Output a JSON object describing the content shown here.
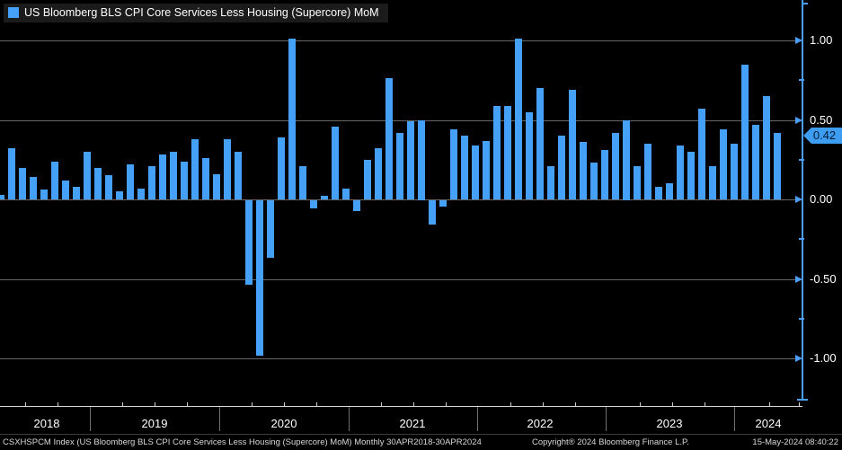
{
  "legend": {
    "label": "US Bloomberg BLS CPI Core Services Less Housing (Supercore) MoM",
    "swatch_color": "#45a1f7"
  },
  "chart_data": {
    "type": "bar",
    "title": "US Bloomberg BLS CPI Core Services Less Housing (Supercore) MoM",
    "x": [
      "Apr 2018",
      "May 2018",
      "Jun 2018",
      "Jul 2018",
      "Aug 2018",
      "Sep 2018",
      "Oct 2018",
      "Nov 2018",
      "Dec 2018",
      "Jan 2019",
      "Feb 2019",
      "Mar 2019",
      "Apr 2019",
      "May 2019",
      "Jun 2019",
      "Jul 2019",
      "Aug 2019",
      "Sep 2019",
      "Oct 2019",
      "Nov 2019",
      "Dec 2019",
      "Jan 2020",
      "Feb 2020",
      "Mar 2020",
      "Apr 2020",
      "May 2020",
      "Jun 2020",
      "Jul 2020",
      "Aug 2020",
      "Sep 2020",
      "Oct 2020",
      "Nov 2020",
      "Dec 2020",
      "Jan 2021",
      "Feb 2021",
      "Mar 2021",
      "Apr 2021",
      "May 2021",
      "Jun 2021",
      "Jul 2021",
      "Aug 2021",
      "Sep 2021",
      "Oct 2021",
      "Nov 2021",
      "Dec 2021",
      "Jan 2022",
      "Feb 2022",
      "Mar 2022",
      "Apr 2022",
      "May 2022",
      "Jun 2022",
      "Jul 2022",
      "Aug 2022",
      "Sep 2022",
      "Oct 2022",
      "Nov 2022",
      "Dec 2022",
      "Jan 2023",
      "Feb 2023",
      "Mar 2023",
      "Apr 2023",
      "May 2023",
      "Jun 2023",
      "Jul 2023",
      "Aug 2023",
      "Sep 2023",
      "Oct 2023",
      "Nov 2023",
      "Dec 2023",
      "Jan 2024",
      "Feb 2024",
      "Mar 2024",
      "Apr 2024"
    ],
    "values": [
      0.03,
      0.32,
      0.2,
      0.14,
      0.06,
      0.24,
      0.12,
      0.08,
      0.3,
      0.2,
      0.15,
      0.05,
      0.22,
      0.07,
      0.21,
      0.28,
      0.3,
      0.24,
      0.38,
      0.26,
      0.16,
      0.38,
      0.3,
      -0.53,
      -0.98,
      -0.36,
      0.39,
      1.01,
      0.21,
      -0.05,
      0.02,
      0.46,
      0.07,
      -0.07,
      0.25,
      0.32,
      0.76,
      0.42,
      0.49,
      0.5,
      -0.15,
      -0.04,
      0.44,
      0.4,
      0.34,
      0.37,
      0.59,
      0.59,
      1.01,
      0.55,
      0.7,
      0.21,
      0.4,
      0.69,
      0.36,
      0.23,
      0.31,
      0.42,
      0.5,
      0.21,
      0.35,
      0.08,
      0.1,
      0.34,
      0.3,
      0.57,
      0.21,
      0.44,
      0.35,
      0.85,
      0.47,
      0.65,
      0.42
    ],
    "year_labels": [
      "2018",
      "2019",
      "2020",
      "2021",
      "2022",
      "2023",
      "2024"
    ],
    "yticks": [
      {
        "label": "1.00",
        "value": 1.0
      },
      {
        "label": "0.50",
        "value": 0.5
      },
      {
        "label": "0.00",
        "value": 0.0
      },
      {
        "label": "-0.50",
        "value": -0.5
      },
      {
        "label": "-1.00",
        "value": -1.0
      }
    ],
    "minor_ytick_values": [
      0.75,
      0.25,
      -0.25,
      -0.75
    ],
    "ylim": [
      -1.3,
      1.26
    ],
    "grid": true,
    "legend_position": "top-left",
    "bar_color": "#45a1f7",
    "grid_color": "#666666",
    "axis_color": "#4a9df8",
    "last_value": 0.42,
    "badge_label": "0.42",
    "badge_bg": "#3d9df0"
  },
  "footer": {
    "left": "CSXHSPCM Index (US Bloomberg BLS CPI Core Services Less Housing (Supercore) MoM)  Monthly 30APR2018-30APR2024",
    "copyright": "Copyright® 2024 Bloomberg Finance L.P.",
    "timestamp": "15-May-2024 08:40:22"
  }
}
